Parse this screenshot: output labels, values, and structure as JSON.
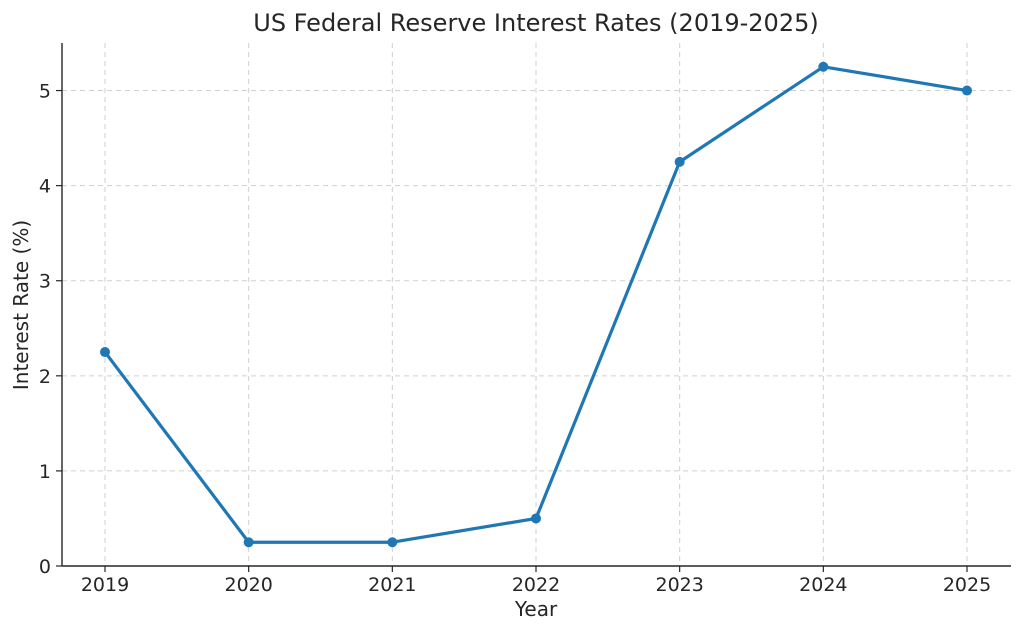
{
  "chart_data": {
    "type": "line",
    "title": "US Federal Reserve Interest Rates (2019-2025)",
    "xlabel": "Year",
    "ylabel": "Interest Rate (%)",
    "categories": [
      "2019",
      "2020",
      "2021",
      "2022",
      "2023",
      "2024",
      "2025"
    ],
    "series": [
      {
        "values": [
          2.25,
          0.25,
          0.25,
          0.5,
          4.25,
          5.25,
          5.0
        ],
        "color": "#1f77b4"
      }
    ],
    "yticks": [
      0,
      1,
      2,
      3,
      4,
      5
    ],
    "ylim": [
      0,
      5.5
    ],
    "grid": true,
    "marker": "circle"
  }
}
